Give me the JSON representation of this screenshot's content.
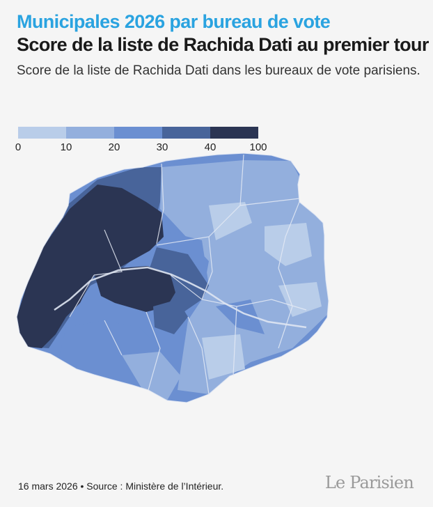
{
  "header": {
    "kicker": "Municipales 2026 par bureau de vote",
    "title": "Score de la liste de Rachida Dati au premier tour",
    "subtitle": "Score de la liste de Rachida Dati dans les bureaux de vote parisiens."
  },
  "legend": {
    "ticks": [
      "0",
      "10",
      "20",
      "30",
      "40",
      "100"
    ],
    "bins": [
      {
        "range": [
          0,
          10
        ],
        "color": "#b9cde9"
      },
      {
        "range": [
          10,
          20
        ],
        "color": "#93afdd"
      },
      {
        "range": [
          20,
          30
        ],
        "color": "#6b8fd1"
      },
      {
        "range": [
          30,
          40
        ],
        "color": "#48649a"
      },
      {
        "range": [
          40,
          100
        ],
        "color": "#2b3553"
      }
    ]
  },
  "colors": {
    "background": "#f5f5f5",
    "kicker": "#2aa3e0",
    "borders": "#e6ebf5"
  },
  "footer": {
    "source": "16 mars 2026 • Source : Ministère de l’Intérieur.",
    "logo": "Le Parisien"
  }
}
